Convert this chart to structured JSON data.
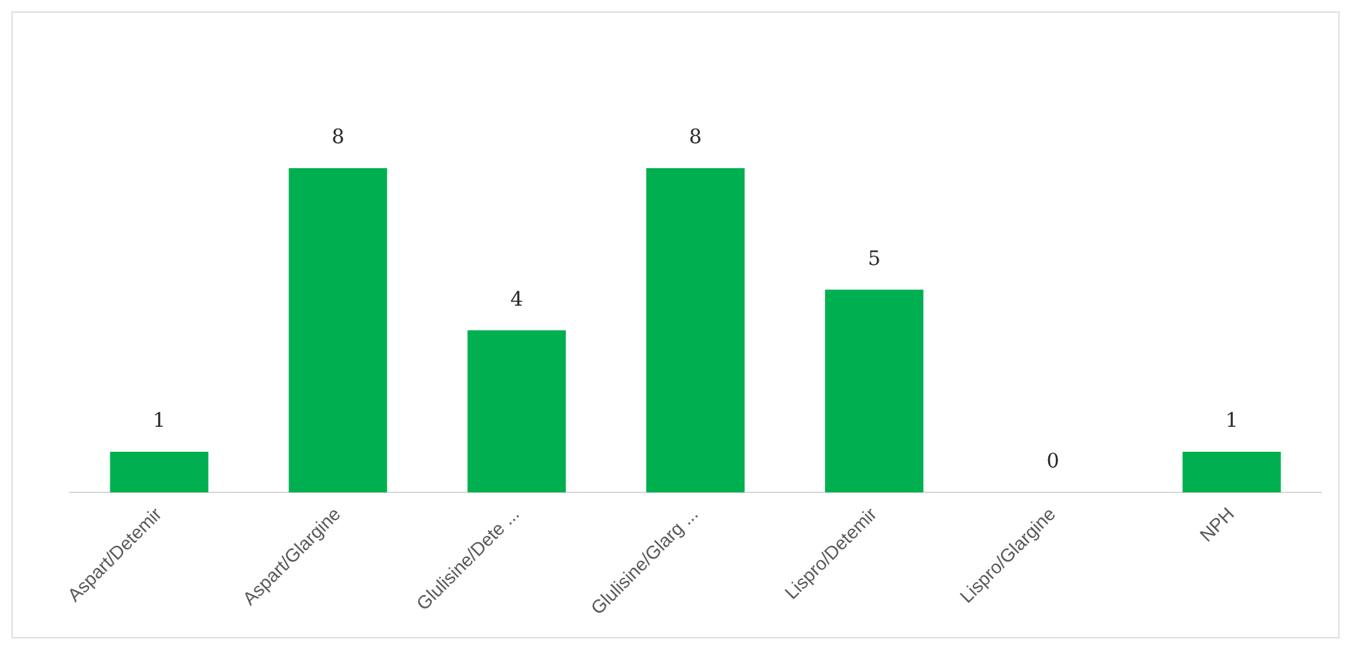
{
  "chart_data": {
    "type": "bar",
    "categories": [
      "Aspart/Detemir",
      "Aspart/Glargine",
      "Glulisine/Dete ...",
      "Glulisine/Glarg ...",
      "Lispro/Detemir",
      "Lispro/Glargine",
      "NPH"
    ],
    "values": [
      1,
      8,
      4,
      8,
      5,
      0,
      1
    ],
    "color": "#00b050",
    "data_labels": true,
    "grid": false,
    "legend": false
  }
}
